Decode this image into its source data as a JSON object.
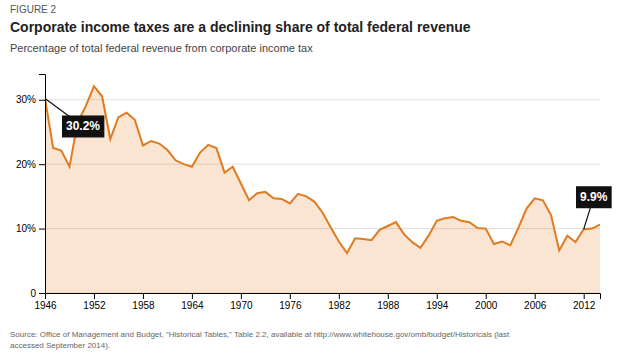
{
  "chart_data": {
    "type": "area",
    "figure_label": "FIGURE 2",
    "title": "Corporate income taxes are a declining share of total federal revenue",
    "subtitle": "Percentage of total federal revenue from corporate income tax",
    "source": "Source: Office of Management and Budget, \"Historical Tables,\" Table 2.2, available at http://www.whitehouse.gov/omb/budget/Historicals (last\naccessed September 2014).",
    "x": [
      1946,
      1947,
      1948,
      1949,
      1950,
      1951,
      1952,
      1953,
      1954,
      1955,
      1956,
      1957,
      1958,
      1959,
      1960,
      1961,
      1962,
      1963,
      1964,
      1965,
      1966,
      1967,
      1968,
      1969,
      1970,
      1971,
      1972,
      1973,
      1974,
      1975,
      1976,
      1977,
      1978,
      1979,
      1980,
      1981,
      1982,
      1983,
      1984,
      1985,
      1986,
      1987,
      1988,
      1989,
      1990,
      1991,
      1992,
      1993,
      1994,
      1995,
      1996,
      1997,
      1998,
      1999,
      2000,
      2001,
      2002,
      2003,
      2004,
      2005,
      2006,
      2007,
      2008,
      2009,
      2010,
      2011,
      2012,
      2013,
      2014
    ],
    "values": [
      30.2,
      22.5,
      22.1,
      19.6,
      26.5,
      29.0,
      32.1,
      30.5,
      23.9,
      27.3,
      28.0,
      26.9,
      22.9,
      23.6,
      23.2,
      22.2,
      20.6,
      20.0,
      19.6,
      21.8,
      23.0,
      22.5,
      18.7,
      19.6,
      17.0,
      14.4,
      15.5,
      15.7,
      14.7,
      14.6,
      13.9,
      15.4,
      15.0,
      14.2,
      12.5,
      10.2,
      8.0,
      6.2,
      8.5,
      8.4,
      8.2,
      9.8,
      10.4,
      11.0,
      9.1,
      7.9,
      7.0,
      8.9,
      11.2,
      11.6,
      11.8,
      11.2,
      11.0,
      10.1,
      10.0,
      7.6,
      8.0,
      7.4,
      10.1,
      13.1,
      14.7,
      14.4,
      12.1,
      6.6,
      8.9,
      7.9,
      9.9,
      10.0,
      10.6
    ],
    "color": "#E07B20",
    "xlim": [
      1946,
      2014
    ],
    "ylim": [
      0,
      34
    ],
    "xticks": [
      1946,
      1952,
      1958,
      1964,
      1970,
      1976,
      1982,
      1988,
      1994,
      2000,
      2006,
      2012
    ],
    "yticks": [
      0,
      {
        "value": 10,
        "label": "10%"
      },
      {
        "value": 20,
        "label": "20%"
      },
      {
        "value": 30,
        "label": "30%"
      }
    ],
    "grid": true,
    "annotations": [
      {
        "x": 1946,
        "y": 30.2,
        "label": "30.2%"
      },
      {
        "x": 2012,
        "y": 9.9,
        "label": "9.9%"
      }
    ]
  }
}
